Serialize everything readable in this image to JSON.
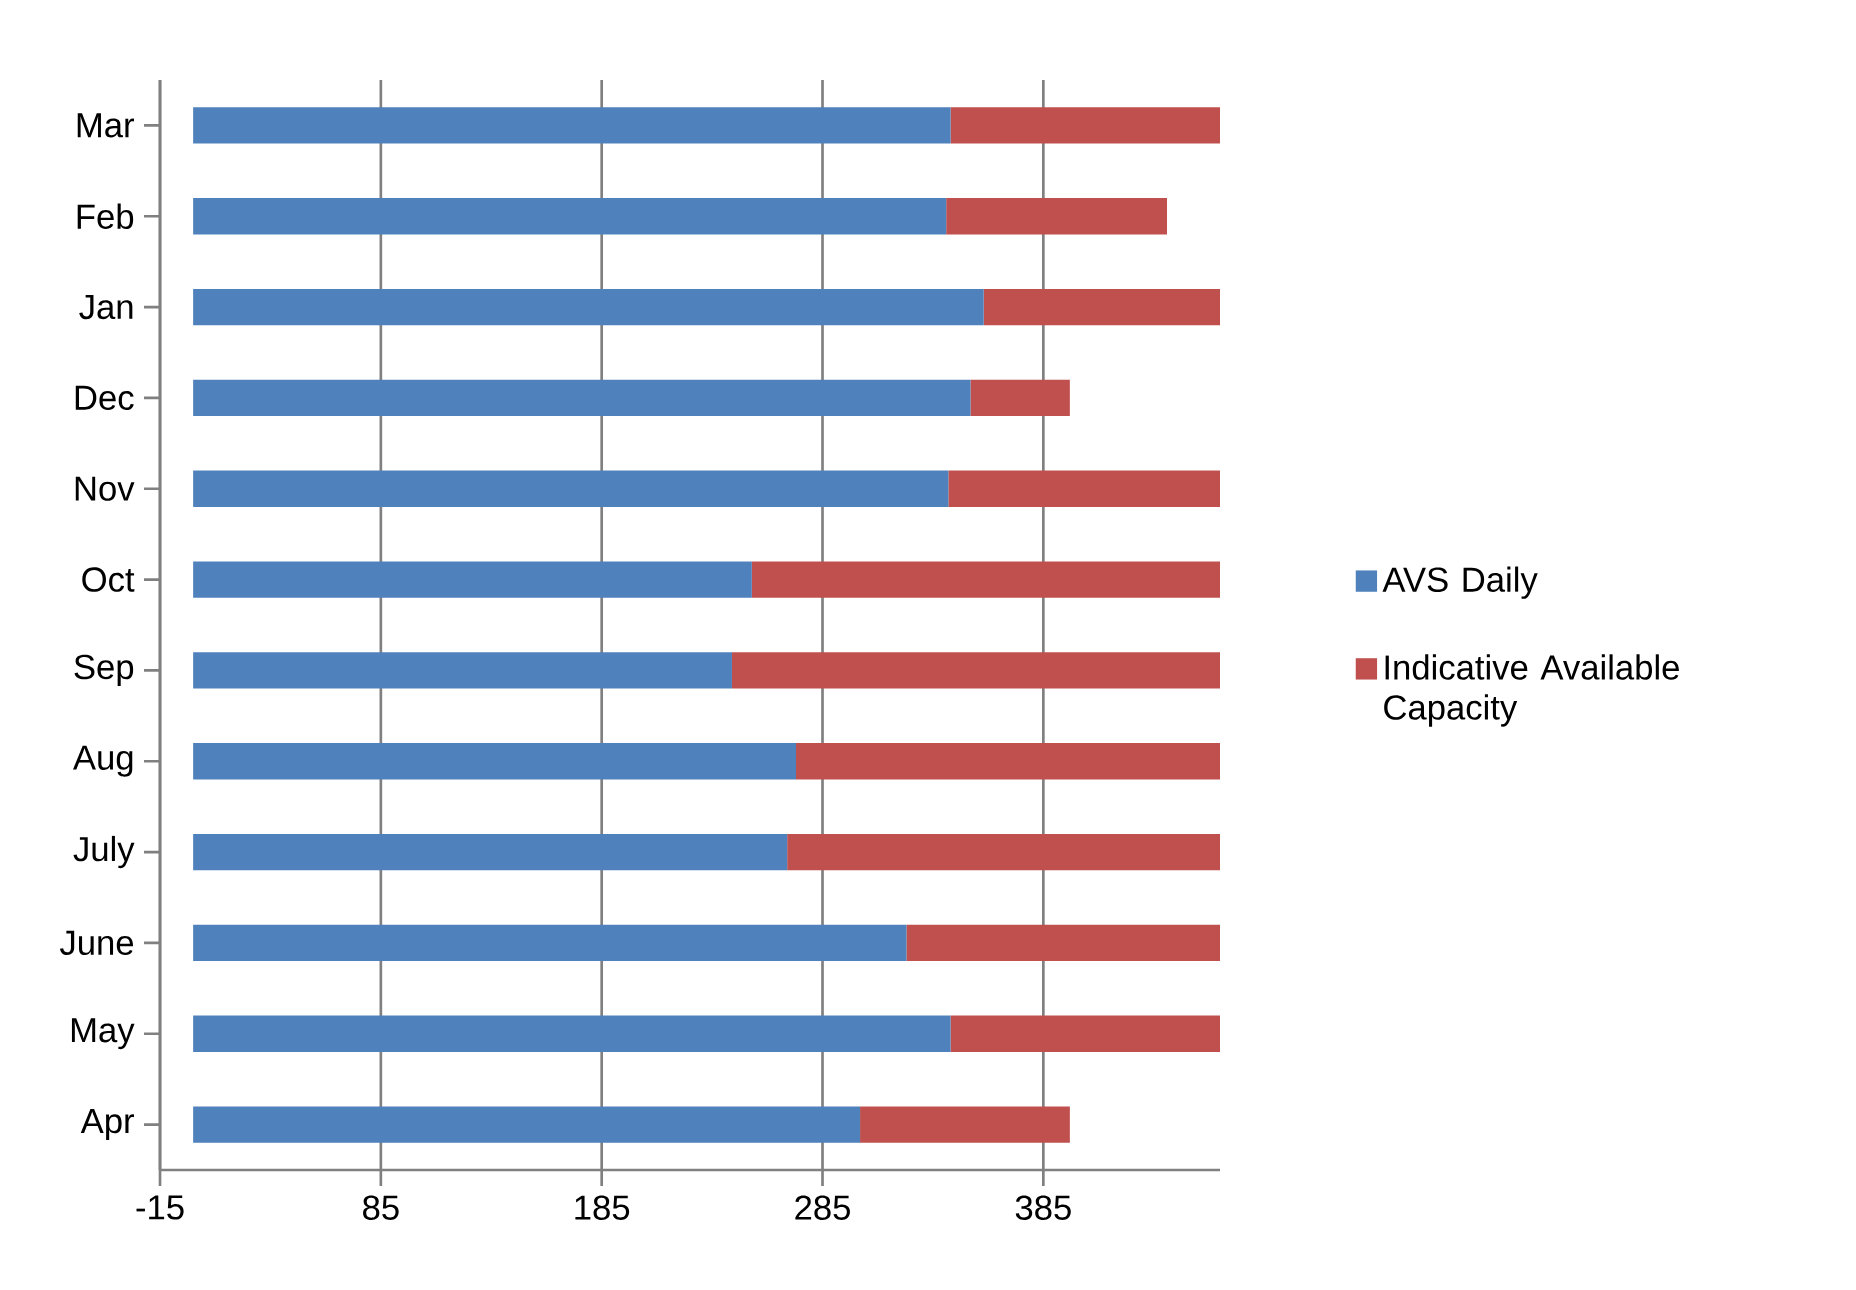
{
  "chart_data": {
    "type": "bar",
    "orientation": "horizontal",
    "stacked": true,
    "categories": [
      "Mar",
      "Feb",
      "Jan",
      "Dec",
      "Nov",
      "Oct",
      "Sep",
      "Aug",
      "July",
      "June",
      "May",
      "Apr"
    ],
    "series": [
      {
        "name": "AVS Daily",
        "color": "#4f81bd",
        "values": [
          343,
          341,
          358,
          352,
          342,
          253,
          244,
          273,
          269,
          323,
          343,
          302
        ]
      },
      {
        "name": "Indicative Available Capacity",
        "color": "#c0504d",
        "values": [
          122,
          100,
          107,
          45,
          123,
          212,
          221,
          192,
          196,
          142,
          122,
          95
        ]
      }
    ],
    "xlim": [
      -15,
      465
    ],
    "xticks": [
      -15,
      85,
      185,
      285,
      385
    ],
    "grid": "x",
    "legend": "right"
  }
}
